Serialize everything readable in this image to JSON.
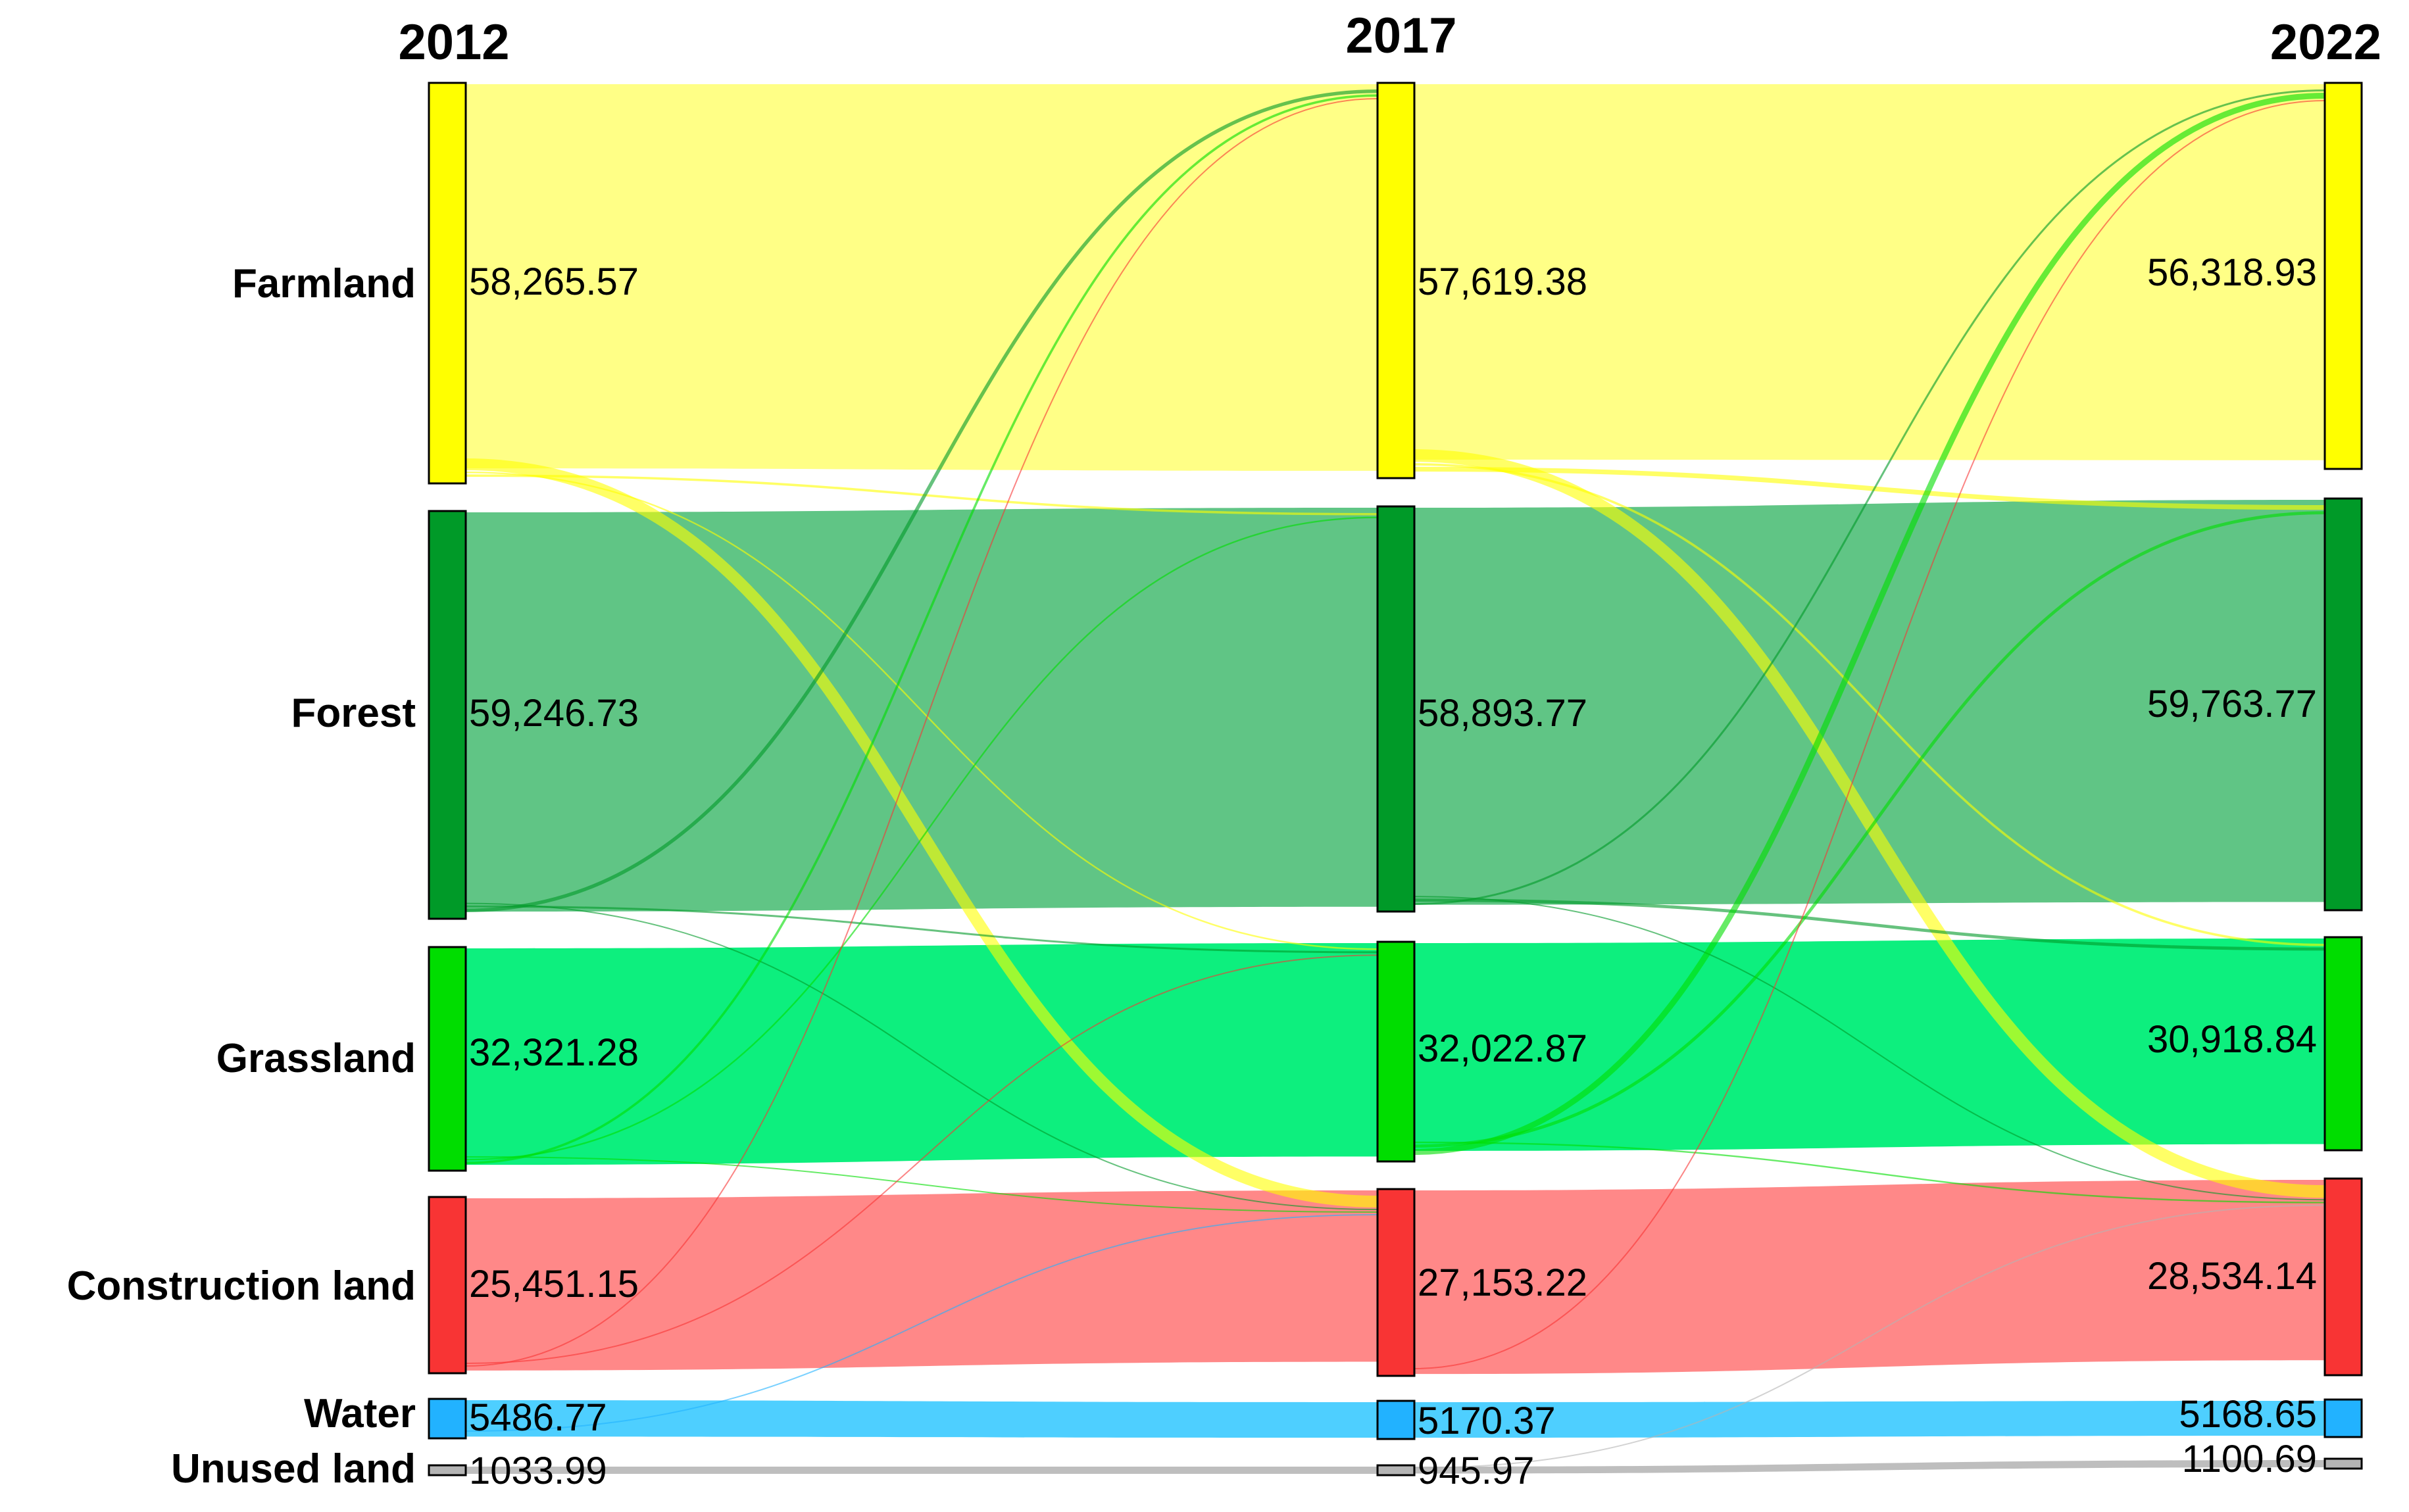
{
  "chart_data": {
    "type": "sankey",
    "years": [
      "2012",
      "2017",
      "2022"
    ],
    "categories": [
      {
        "name": "Farmland",
        "color": "#ffff00",
        "flow_color": "#ffff80",
        "values": [
          "58,265.57",
          "57,619.38",
          "56,318.93"
        ]
      },
      {
        "name": "Forest",
        "color": "#009a28",
        "flow_color": "#57c27e",
        "values": [
          "59,246.73",
          "58,893.77",
          "59,763.77"
        ]
      },
      {
        "name": "Grassland",
        "color": "#00dd00",
        "flow_color": "#00ee77",
        "values": [
          "32,321.28",
          "32,022.87",
          "30,918.84"
        ]
      },
      {
        "name": "Construction land",
        "color": "#f83434",
        "flow_color": "#ff8282",
        "values": [
          "25,451.15",
          "27,153.22",
          "28,534.14"
        ]
      },
      {
        "name": "Water",
        "color": "#22b2ff",
        "flow_color": "#44ccff",
        "values": [
          "5486.77",
          "5170.37",
          "5168.65"
        ]
      },
      {
        "name": "Unused land",
        "color": "#b4b4b4",
        "flow_color": "#bbbbbb",
        "values": [
          "1033.99",
          "945.97",
          "1100.69"
        ]
      }
    ],
    "transfers": [
      {
        "period": "2012-2017",
        "from": "Farmland",
        "to": "Forest",
        "value": 300
      },
      {
        "period": "2012-2017",
        "from": "Farmland",
        "to": "Grassland",
        "value": 200
      },
      {
        "period": "2012-2017",
        "from": "Farmland",
        "to": "Construction land",
        "value": 1500
      },
      {
        "period": "2012-2017",
        "from": "Forest",
        "to": "Farmland",
        "value": 450
      },
      {
        "period": "2012-2017",
        "from": "Forest",
        "to": "Grassland",
        "value": 250
      },
      {
        "period": "2012-2017",
        "from": "Forest",
        "to": "Construction land",
        "value": 150
      },
      {
        "period": "2012-2017",
        "from": "Grassland",
        "to": "Farmland",
        "value": 300
      },
      {
        "period": "2012-2017",
        "from": "Grassland",
        "to": "Forest",
        "value": 200
      },
      {
        "period": "2012-2017",
        "from": "Grassland",
        "to": "Construction land",
        "value": 150
      },
      {
        "period": "2012-2017",
        "from": "Construction land",
        "to": "Farmland",
        "value": 120
      },
      {
        "period": "2012-2017",
        "from": "Construction land",
        "to": "Grassland",
        "value": 80
      },
      {
        "period": "2012-2017",
        "from": "Water",
        "to": "Construction land",
        "value": 60
      },
      {
        "period": "2017-2022",
        "from": "Farmland",
        "to": "Forest",
        "value": 600
      },
      {
        "period": "2017-2022",
        "from": "Farmland",
        "to": "Grassland",
        "value": 300
      },
      {
        "period": "2017-2022",
        "from": "Farmland",
        "to": "Construction land",
        "value": 1600
      },
      {
        "period": "2017-2022",
        "from": "Forest",
        "to": "Farmland",
        "value": 250
      },
      {
        "period": "2017-2022",
        "from": "Forest",
        "to": "Grassland",
        "value": 400
      },
      {
        "period": "2017-2022",
        "from": "Forest",
        "to": "Construction land",
        "value": 150
      },
      {
        "period": "2017-2022",
        "from": "Grassland",
        "to": "Farmland",
        "value": 750
      },
      {
        "period": "2017-2022",
        "from": "Grassland",
        "to": "Forest",
        "value": 400
      },
      {
        "period": "2017-2022",
        "from": "Grassland",
        "to": "Construction land",
        "value": 200
      },
      {
        "period": "2017-2022",
        "from": "Construction land",
        "to": "Farmland",
        "value": 80
      },
      {
        "period": "2017-2022",
        "from": "Unused land",
        "to": "Construction land",
        "value": 30
      }
    ]
  }
}
